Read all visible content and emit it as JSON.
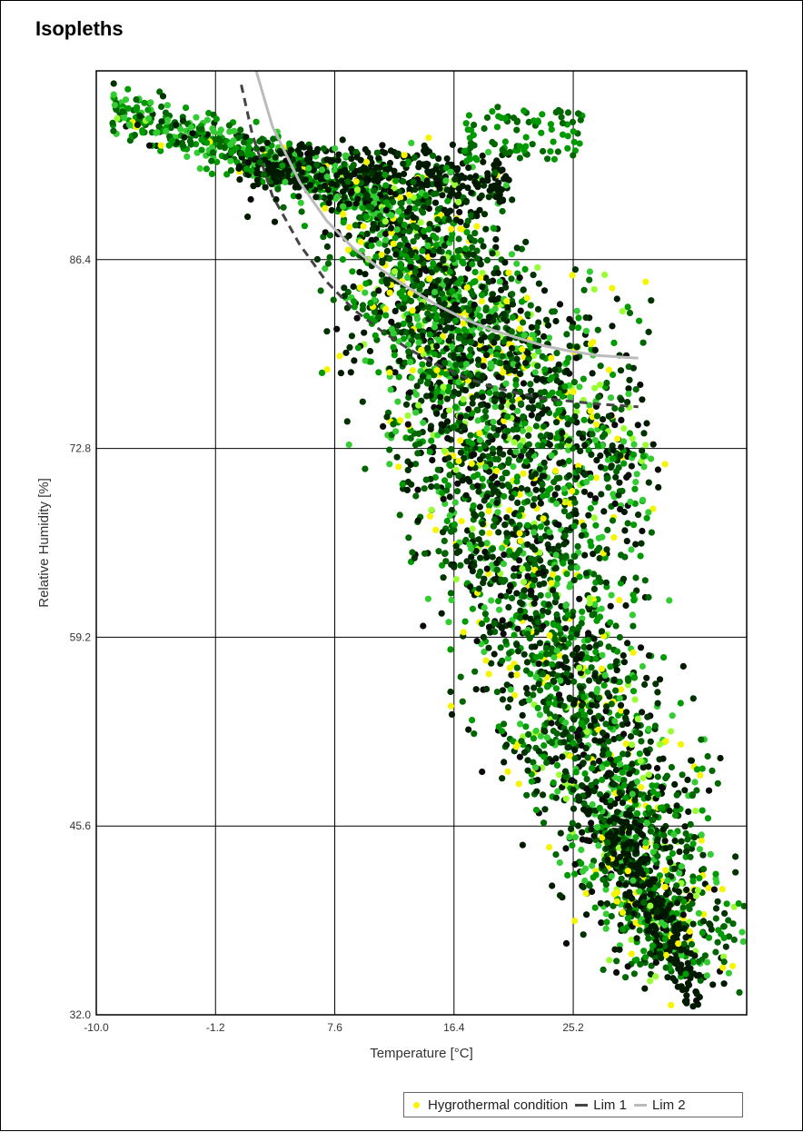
{
  "title": "Isopleths",
  "chart_data": {
    "type": "scatter",
    "title": "Isopleths",
    "xlabel": "Temperature [°C]",
    "ylabel": "Relative Humidity [%]",
    "xlim": [
      -10.0,
      38.0
    ],
    "ylim": [
      32.0,
      100.0
    ],
    "xticks": [
      "-10.0",
      "-1.2",
      "7.6",
      "16.4",
      "25.2"
    ],
    "xtick_values": [
      -10.0,
      -1.2,
      7.6,
      16.4,
      25.2
    ],
    "yticks": [
      "32.0",
      "45.6",
      "59.2",
      "72.8",
      "86.4"
    ],
    "ytick_values": [
      32.0,
      45.6,
      59.2,
      72.8,
      86.4
    ],
    "grid": true,
    "legend_position": "bottom-right",
    "series": [
      {
        "name": "Hygrothermal condition",
        "kind": "scatter",
        "color": "#f5f500",
        "points_approx": [
          [
            -8.8,
            97.0
          ],
          [
            -5.0,
            95.5
          ],
          [
            0.0,
            93.0
          ],
          [
            3.0,
            91.0
          ],
          [
            7.0,
            89.0
          ],
          [
            10.0,
            87.5
          ],
          [
            12.0,
            86.0
          ],
          [
            14.0,
            84.0
          ],
          [
            15.5,
            80.0
          ],
          [
            16.5,
            76.0
          ],
          [
            17.5,
            72.0
          ],
          [
            18.5,
            68.0
          ],
          [
            19.5,
            64.0
          ],
          [
            21.0,
            60.0
          ],
          [
            22.5,
            56.0
          ],
          [
            24.0,
            52.0
          ],
          [
            25.5,
            48.0
          ],
          [
            27.0,
            45.0
          ],
          [
            28.5,
            42.0
          ],
          [
            30.0,
            39.0
          ],
          [
            31.5,
            37.0
          ],
          [
            33.0,
            35.0
          ],
          [
            20.0,
            94.0
          ],
          [
            24.0,
            96.0
          ],
          [
            26.0,
            94.0
          ],
          [
            28.0,
            84.0
          ],
          [
            30.0,
            85.0
          ],
          [
            26.0,
            79.0
          ],
          [
            28.0,
            76.0
          ],
          [
            24.0,
            74.0
          ]
        ],
        "palette": [
          "#f5f500",
          "#99ff33",
          "#33cc33",
          "#009900",
          "#006600",
          "#003300",
          "#001a00",
          "#0a0a0a"
        ]
      },
      {
        "name": "Lim 1",
        "kind": "line",
        "color": "#444444",
        "dash": "dashed",
        "points": [
          [
            0.7,
            99.0
          ],
          [
            1.5,
            95.5
          ],
          [
            3.0,
            91.0
          ],
          [
            5.0,
            87.5
          ],
          [
            7.0,
            84.8
          ],
          [
            9.0,
            82.8
          ],
          [
            11.0,
            81.3
          ],
          [
            13.0,
            80.0
          ],
          [
            15.0,
            78.9
          ],
          [
            17.0,
            78.0
          ],
          [
            19.0,
            77.3
          ],
          [
            21.0,
            76.8
          ],
          [
            23.0,
            76.4
          ],
          [
            25.0,
            76.2
          ],
          [
            27.0,
            76.0
          ],
          [
            30.0,
            75.8
          ]
        ]
      },
      {
        "name": "Lim 2",
        "kind": "line",
        "color": "#bbbbbb",
        "dash": "solid",
        "points": [
          [
            1.8,
            100.0
          ],
          [
            3.0,
            96.0
          ],
          [
            5.0,
            92.0
          ],
          [
            7.0,
            89.2
          ],
          [
            9.0,
            87.2
          ],
          [
            11.0,
            85.7
          ],
          [
            13.0,
            84.4
          ],
          [
            15.0,
            83.2
          ],
          [
            17.0,
            82.2
          ],
          [
            19.0,
            81.4
          ],
          [
            21.0,
            80.8
          ],
          [
            23.0,
            80.2
          ],
          [
            25.0,
            79.8
          ],
          [
            27.0,
            79.5
          ],
          [
            30.0,
            79.3
          ]
        ]
      }
    ]
  },
  "legend": {
    "items": [
      {
        "label": "Hygrothermal condition",
        "color": "#f5f500",
        "marker": "dot"
      },
      {
        "label": "Lim 1",
        "color": "#444444",
        "marker": "line"
      },
      {
        "label": "Lim 2",
        "color": "#bbbbbb",
        "marker": "line"
      }
    ]
  }
}
